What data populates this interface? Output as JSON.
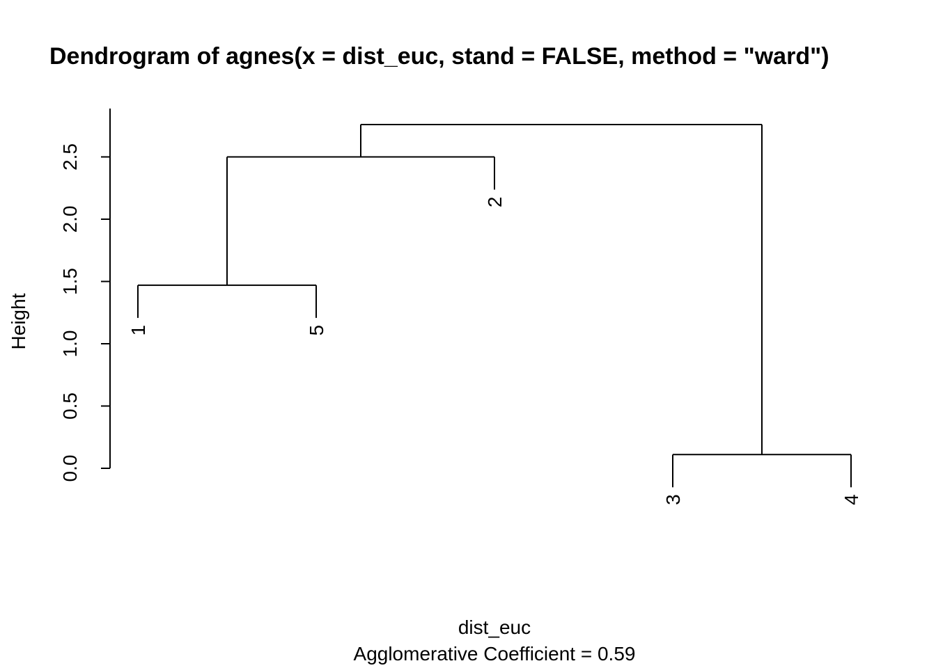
{
  "chart_data": {
    "type": "dendrogram",
    "title": "Dendrogram of  agnes(x = dist_euc, stand = FALSE, method = \"ward\")",
    "xlabel": "dist_euc",
    "subtitle": "Agglomerative Coefficient =  0.59",
    "ylabel": "Height",
    "ylim": [
      0,
      2.75
    ],
    "y_ticks": [
      "0.0",
      "0.5",
      "1.0",
      "1.5",
      "2.0",
      "2.5"
    ],
    "leaf_order": [
      "1",
      "5",
      "2",
      "3",
      "4"
    ],
    "merges": [
      {
        "left": "3",
        "right": "4",
        "height": 0.11
      },
      {
        "left": "1",
        "right": "5",
        "height": 1.47
      },
      {
        "left": "1+5",
        "right": "2",
        "height": 2.5
      },
      {
        "left": "1+5+2",
        "right": "3+4",
        "height": 2.76
      }
    ]
  }
}
